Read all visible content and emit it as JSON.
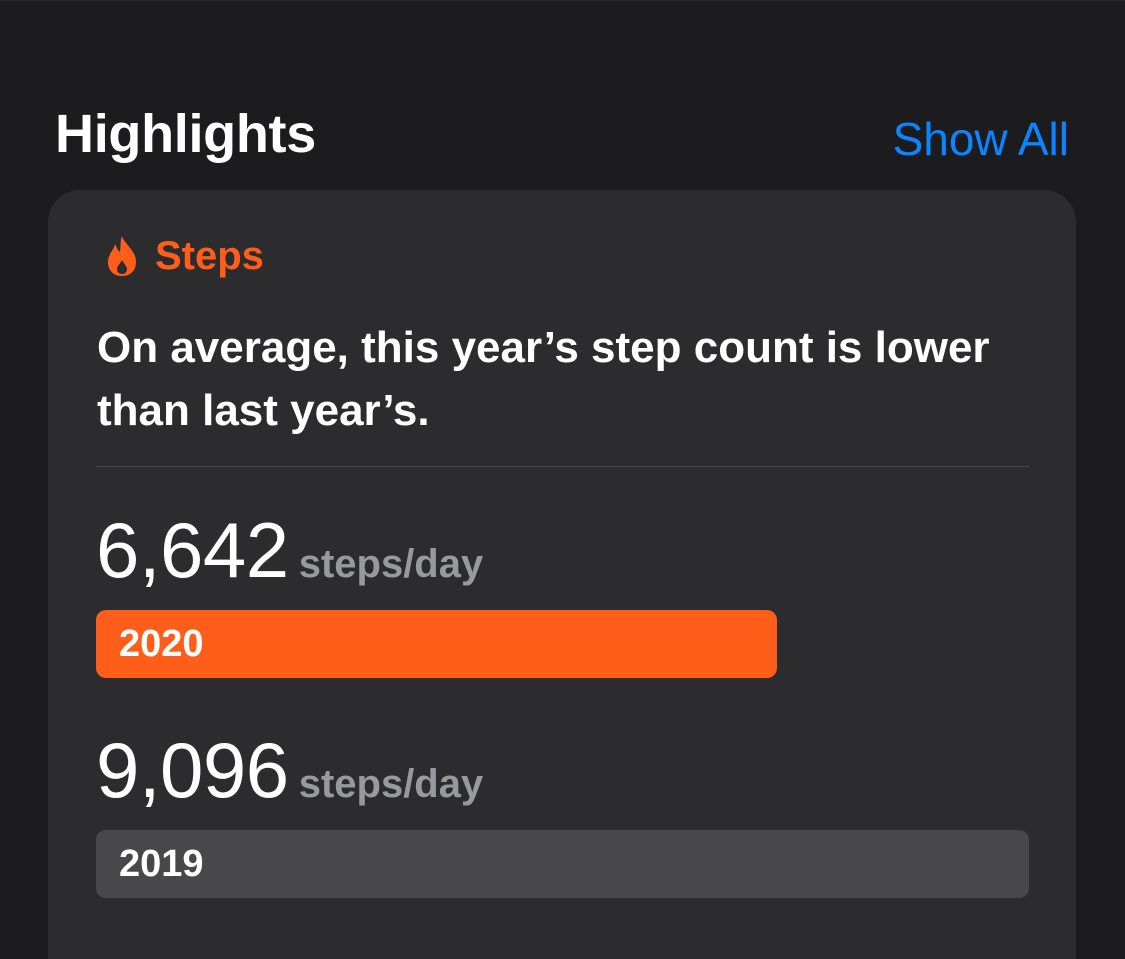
{
  "header": {
    "title": "Highlights",
    "show_all_label": "Show All"
  },
  "card": {
    "category_label": "Steps",
    "category_icon": "flame-icon",
    "accent_color": "#ff5e1a",
    "description": "On average, this year’s step count is lower than last year’s.",
    "stats": [
      {
        "value": "6,642",
        "unit": "steps/day",
        "year": "2020",
        "fraction": 0.73
      },
      {
        "value": "9,096",
        "unit": "steps/day",
        "year": "2019",
        "fraction": 1.0
      }
    ]
  },
  "colors": {
    "background": "#1c1c1e",
    "card": "#2c2c2e",
    "link": "#0a84ff",
    "bar_inactive": "#48484a"
  }
}
